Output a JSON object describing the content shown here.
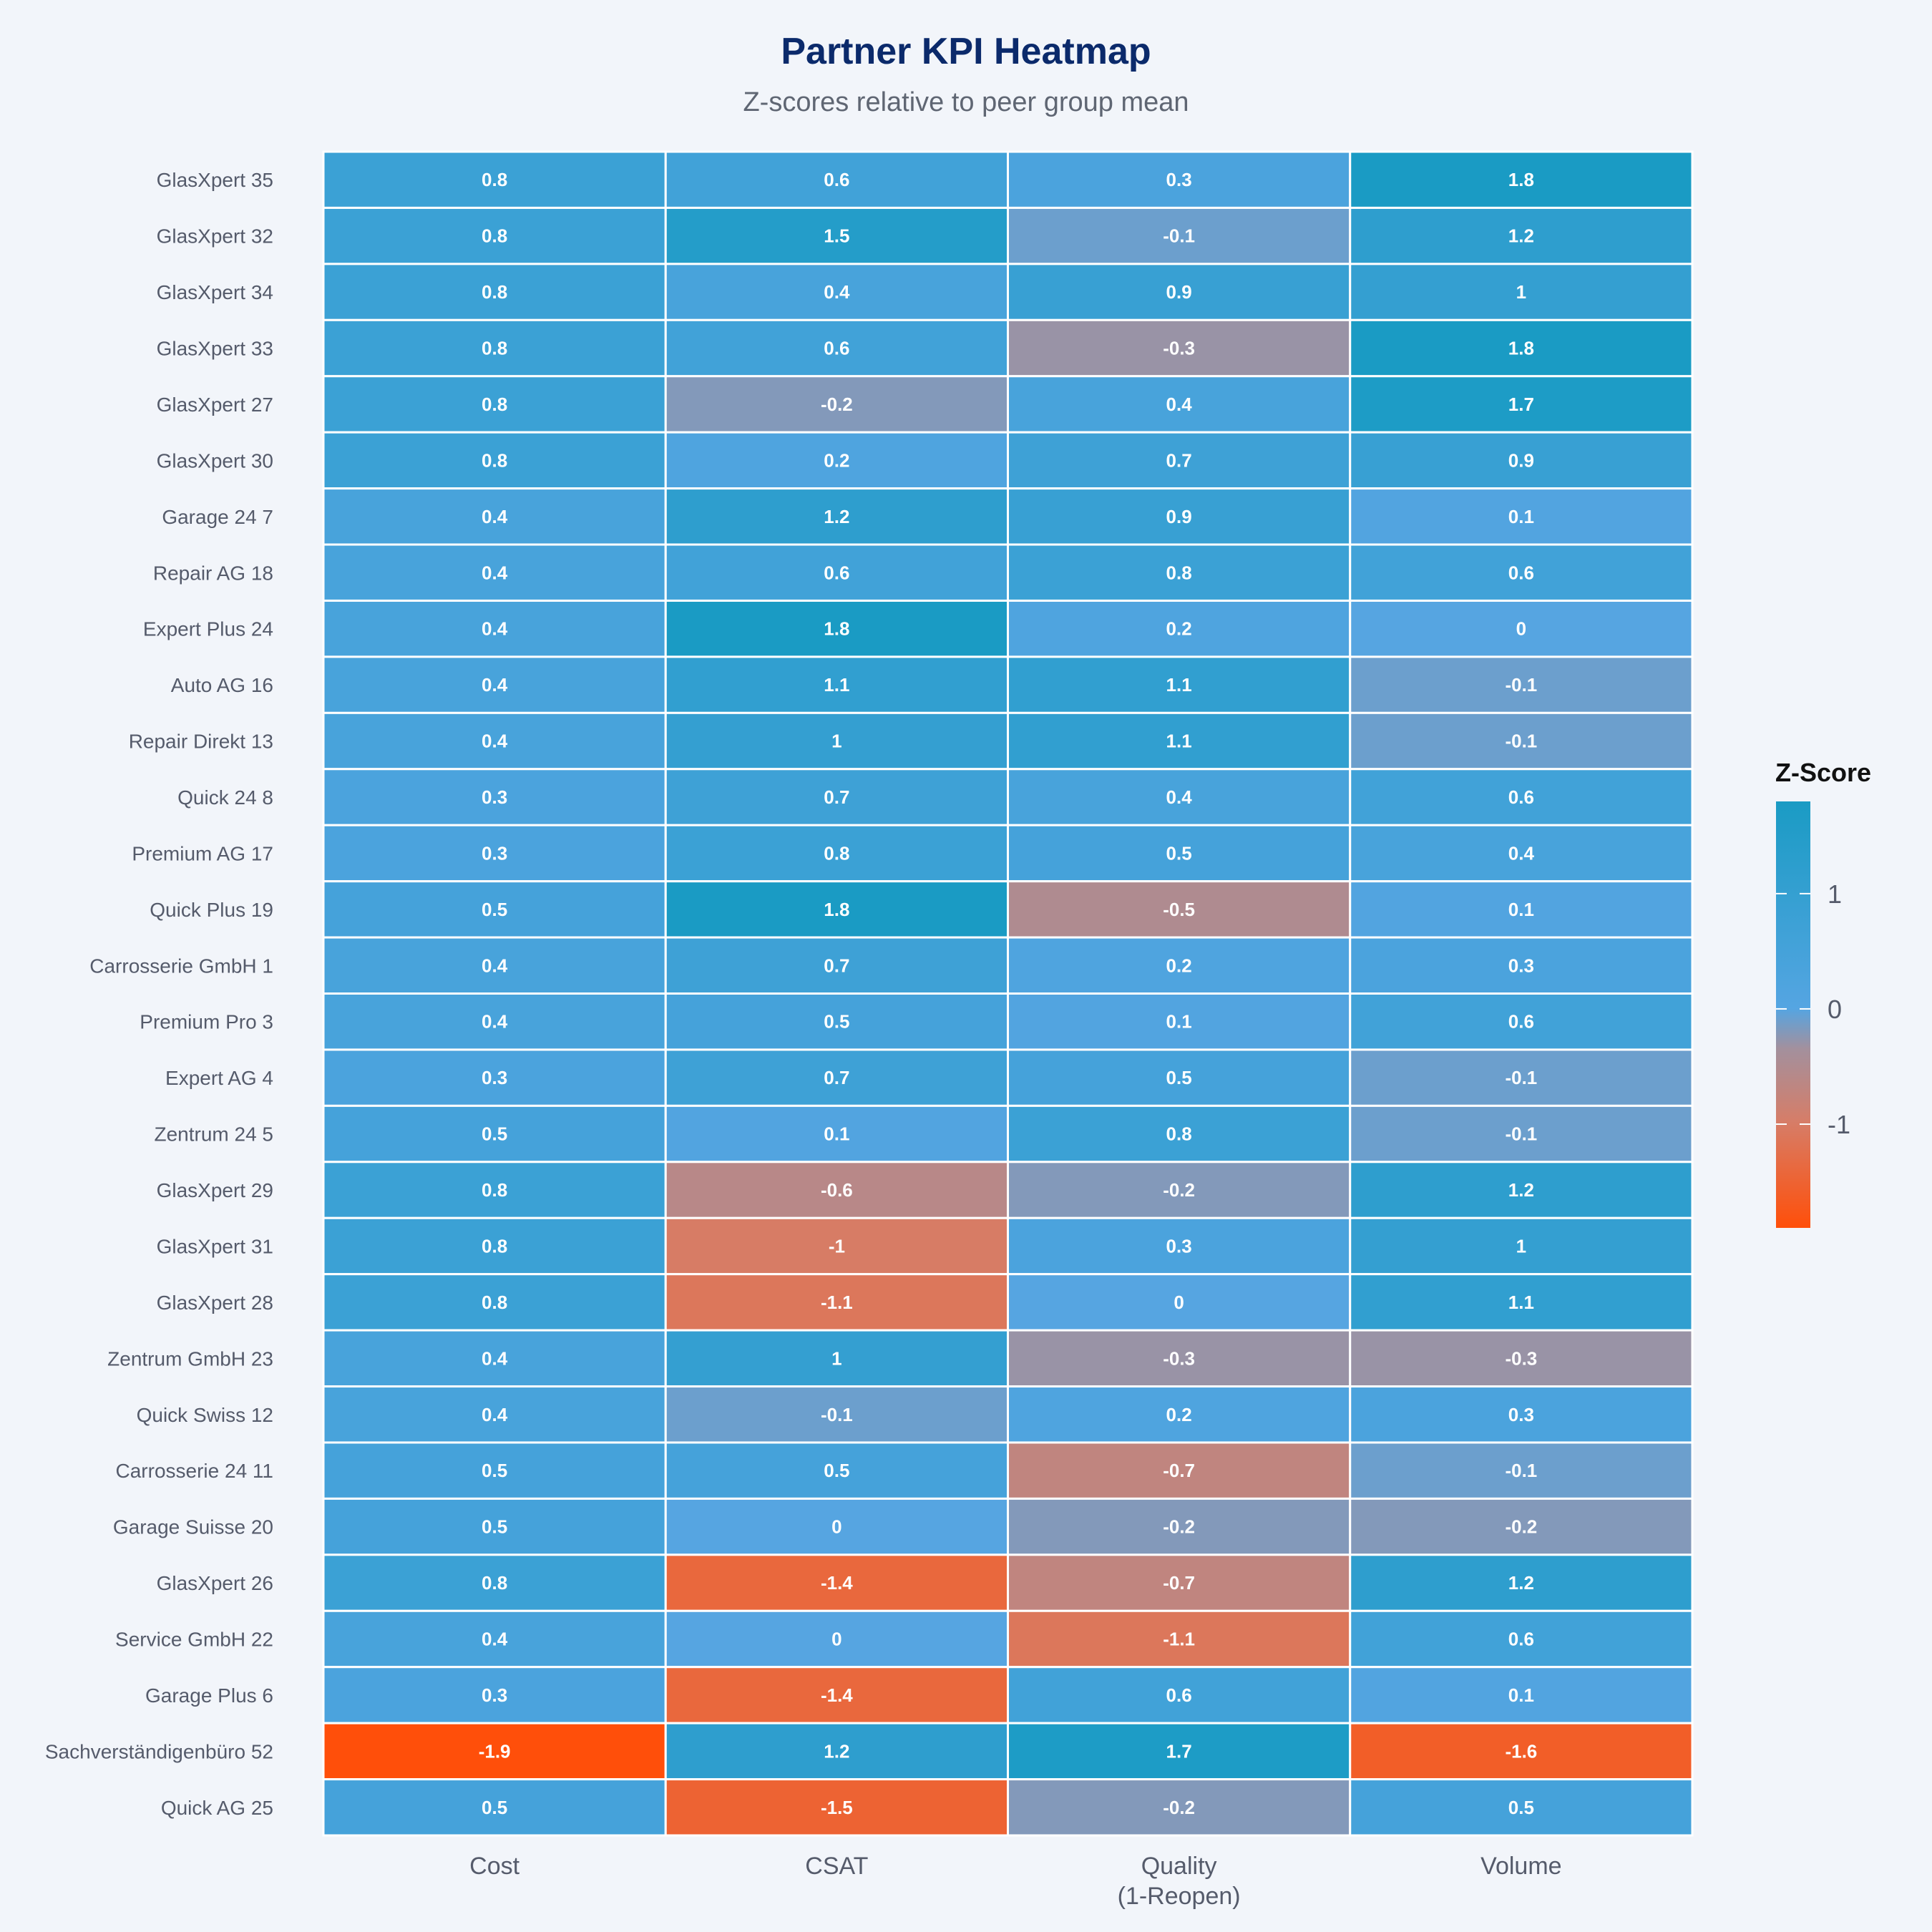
{
  "chart_data": {
    "type": "heatmap",
    "title": "Partner KPI Heatmap",
    "subtitle": "Z-scores relative to peer group mean",
    "xlabel": "",
    "ylabel": "",
    "columns": [
      "Cost",
      "CSAT",
      "Quality\n(1-Reopen)",
      "Volume"
    ],
    "rows": [
      "GlasXpert 35",
      "GlasXpert 32",
      "GlasXpert 34",
      "GlasXpert 33",
      "GlasXpert 27",
      "GlasXpert 30",
      "Garage 24 7",
      "Repair AG 18",
      "Expert Plus 24",
      "Auto AG 16",
      "Repair Direkt 13",
      "Quick 24 8",
      "Premium AG 17",
      "Quick Plus 19",
      "Carrosserie GmbH 1",
      "Premium Pro 3",
      "Expert AG 4",
      "Zentrum 24 5",
      "GlasXpert 29",
      "GlasXpert 31",
      "GlasXpert 28",
      "Zentrum GmbH 23",
      "Quick Swiss 12",
      "Carrosserie 24 11",
      "Garage Suisse 20",
      "GlasXpert 26",
      "Service GmbH 22",
      "Garage Plus 6",
      "Sachverständigenbüro 52",
      "Quick AG 25"
    ],
    "values": [
      [
        0.8,
        0.6,
        0.3,
        1.8
      ],
      [
        0.8,
        1.5,
        -0.1,
        1.2
      ],
      [
        0.8,
        0.4,
        0.9,
        1
      ],
      [
        0.8,
        0.6,
        -0.3,
        1.8
      ],
      [
        0.8,
        -0.2,
        0.4,
        1.7
      ],
      [
        0.8,
        0.2,
        0.7,
        0.9
      ],
      [
        0.4,
        1.2,
        0.9,
        0.1
      ],
      [
        0.4,
        0.6,
        0.8,
        0.6
      ],
      [
        0.4,
        1.8,
        0.2,
        0
      ],
      [
        0.4,
        1.1,
        1.1,
        -0.1
      ],
      [
        0.4,
        1,
        1.1,
        -0.1
      ],
      [
        0.3,
        0.7,
        0.4,
        0.6
      ],
      [
        0.3,
        0.8,
        0.5,
        0.4
      ],
      [
        0.5,
        1.8,
        -0.5,
        0.1
      ],
      [
        0.4,
        0.7,
        0.2,
        0.3
      ],
      [
        0.4,
        0.5,
        0.1,
        0.6
      ],
      [
        0.3,
        0.7,
        0.5,
        -0.1
      ],
      [
        0.5,
        0.1,
        0.8,
        -0.1
      ],
      [
        0.8,
        -0.6,
        -0.2,
        1.2
      ],
      [
        0.8,
        -1,
        0.3,
        1
      ],
      [
        0.8,
        -1.1,
        0,
        1.1
      ],
      [
        0.4,
        1,
        -0.3,
        -0.3
      ],
      [
        0.4,
        -0.1,
        0.2,
        0.3
      ],
      [
        0.5,
        0.5,
        -0.7,
        -0.1
      ],
      [
        0.5,
        0,
        -0.2,
        -0.2
      ],
      [
        0.8,
        -1.4,
        -0.7,
        1.2
      ],
      [
        0.4,
        0,
        -1.1,
        0.6
      ],
      [
        0.3,
        -1.4,
        0.6,
        0.1
      ],
      [
        -1.9,
        1.2,
        1.7,
        -1.6
      ],
      [
        0.5,
        -1.5,
        -0.2,
        0.5
      ]
    ],
    "zrange": [
      -1.9,
      1.8
    ],
    "colorscale": [
      [
        0,
        "#ff4f0a"
      ],
      [
        0.25,
        "#d67d68"
      ],
      [
        0.42,
        "#a3909d"
      ],
      [
        0.515,
        "#55a5e2"
      ],
      [
        1,
        "#1a9bc4"
      ]
    ],
    "colorbar": {
      "title": "Z-Score",
      "ticks": [
        1,
        0,
        -1
      ],
      "placement": "right"
    },
    "grid": false,
    "cell_labels": true
  }
}
